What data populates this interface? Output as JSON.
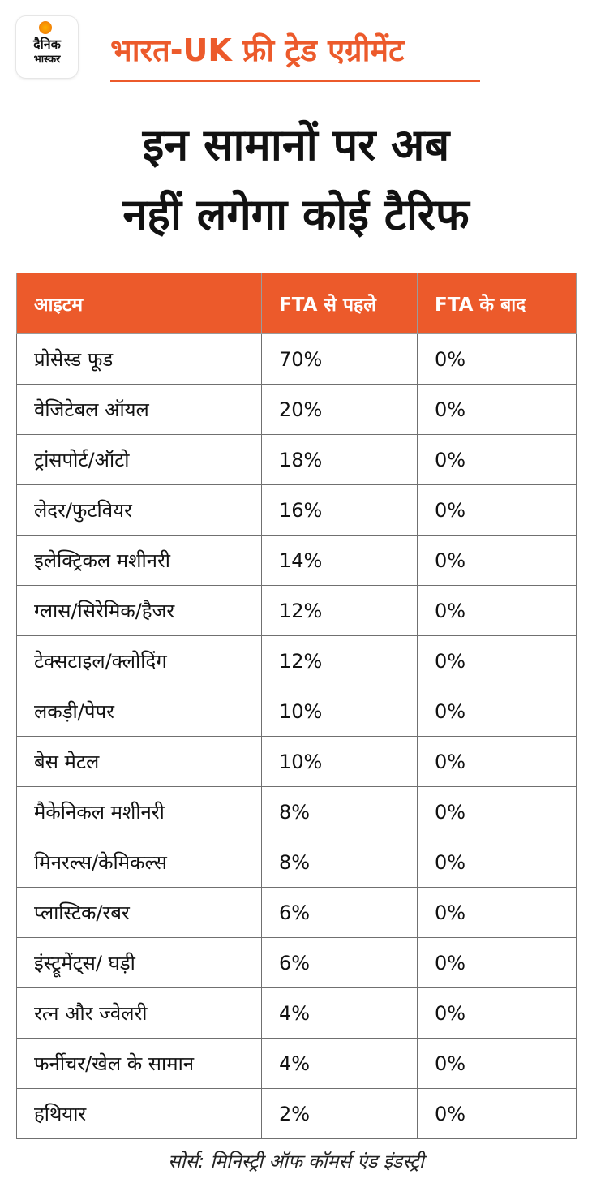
{
  "brand": {
    "line1": "दैनिक",
    "line2": "भास्कर",
    "accent": "#ec5a2b"
  },
  "kicker": "भारत-UK फ्री ट्रेड एग्रीमेंट",
  "headline": {
    "line1": "इन सामानों पर अब",
    "line2": "नहीं लगेगा कोई टैरिफ"
  },
  "table": {
    "headers": {
      "item": "आइटम",
      "before": "FTA से पहले",
      "after": "FTA के बाद"
    },
    "header_color": "#ec5a2b",
    "rows": [
      {
        "item": "प्रोसेस्ड फूड",
        "before": "70%",
        "after": "0%"
      },
      {
        "item": "वेजिटेबल ऑयल",
        "before": "20%",
        "after": "0%"
      },
      {
        "item": "ट्रांसपोर्ट/ऑटो",
        "before": "18%",
        "after": "0%"
      },
      {
        "item": "लेदर/फुटवियर",
        "before": "16%",
        "after": "0%"
      },
      {
        "item": "इलेक्ट्रिकल मशीनरी",
        "before": "14%",
        "after": "0%"
      },
      {
        "item": "ग्लास/सिरेमिक/हैजर",
        "before": "12%",
        "after": "0%"
      },
      {
        "item": "टेक्सटाइल/क्लोदिंग",
        "before": "12%",
        "after": "0%"
      },
      {
        "item": "लकड़ी/पेपर",
        "before": "10%",
        "after": "0%"
      },
      {
        "item": "बेस मेटल",
        "before": "10%",
        "after": "0%"
      },
      {
        "item": "मैकेनिकल मशीनरी",
        "before": "8%",
        "after": "0%"
      },
      {
        "item": "मिनरल्स/केमिकल्स",
        "before": "8%",
        "after": "0%"
      },
      {
        "item": "प्लास्टिक/रबर",
        "before": "6%",
        "after": "0%"
      },
      {
        "item": "इंस्ट्रूमेंट्स/ घड़ी",
        "before": "6%",
        "after": "0%"
      },
      {
        "item": "रत्न और ज्वेलरी",
        "before": "4%",
        "after": "0%"
      },
      {
        "item": "फर्नीचर/खेल के सामान",
        "before": "4%",
        "after": "0%"
      },
      {
        "item": "हथियार",
        "before": "2%",
        "after": "0%"
      }
    ]
  },
  "source": "सोर्स: मिनिस्ट्री ऑफ कॉमर्स एंड इंडस्ट्री"
}
